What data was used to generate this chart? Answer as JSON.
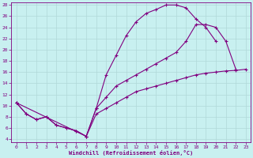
{
  "xlabel": "Windchill (Refroidissement éolien,°C)",
  "bg_color": "#c8f0f0",
  "line_color": "#800080",
  "grid_color": "#b0d8d8",
  "xlim": [
    -0.5,
    23.5
  ],
  "ylim": [
    3.5,
    28.5
  ],
  "xticks": [
    0,
    1,
    2,
    3,
    4,
    5,
    6,
    7,
    8,
    9,
    10,
    11,
    12,
    13,
    14,
    15,
    16,
    17,
    18,
    19,
    20,
    21,
    22,
    23
  ],
  "yticks": [
    4,
    6,
    8,
    10,
    12,
    14,
    16,
    18,
    20,
    22,
    24,
    26,
    28
  ],
  "upper_x": [
    0,
    1,
    2,
    3,
    4,
    5,
    6,
    7,
    8,
    9,
    10,
    11,
    12,
    13,
    14,
    15,
    16,
    17,
    18,
    19,
    20
  ],
  "upper_y": [
    10.5,
    8.5,
    7.5,
    8.0,
    6.5,
    6.0,
    5.5,
    4.5,
    9.5,
    15.5,
    19.0,
    22.5,
    25.0,
    26.5,
    27.2,
    28.0,
    28.0,
    27.5,
    25.5,
    24.0,
    21.5
  ],
  "mid_x": [
    0,
    7,
    8,
    9,
    10,
    11,
    12,
    13,
    14,
    15,
    16,
    17,
    18,
    19,
    20,
    21,
    22
  ],
  "mid_y": [
    10.5,
    4.5,
    9.5,
    11.5,
    13.5,
    14.5,
    15.5,
    16.5,
    17.5,
    18.5,
    19.5,
    21.5,
    24.5,
    24.5,
    24.0,
    21.5,
    16.5
  ],
  "bot_x": [
    0,
    1,
    2,
    3,
    4,
    5,
    6,
    7,
    8,
    9,
    10,
    11,
    12,
    13,
    14,
    15,
    16,
    17,
    18,
    19,
    20,
    21,
    22,
    23
  ],
  "bot_y": [
    10.5,
    8.5,
    7.5,
    8.0,
    6.5,
    6.0,
    5.5,
    4.5,
    8.5,
    9.5,
    10.5,
    11.5,
    12.5,
    13.0,
    13.5,
    14.0,
    14.5,
    15.0,
    15.5,
    15.8,
    16.0,
    16.2,
    16.3,
    16.5
  ]
}
